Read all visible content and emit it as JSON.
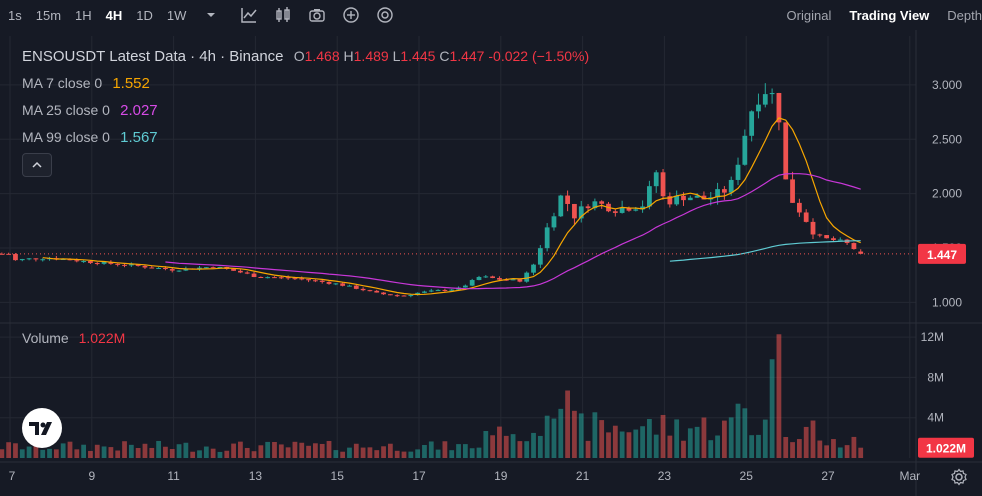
{
  "toolbar": {
    "timeframes": [
      {
        "label": "1s",
        "active": false
      },
      {
        "label": "15m",
        "active": false
      },
      {
        "label": "1H",
        "active": false
      },
      {
        "label": "4H",
        "active": true
      },
      {
        "label": "1D",
        "active": false
      },
      {
        "label": "1W",
        "active": false
      }
    ],
    "icons": [
      "chevron-down-icon",
      "indicators-icon",
      "chart-type-icon",
      "camera-icon",
      "plus-circle-icon",
      "replay-icon"
    ],
    "views": [
      {
        "label": "Original",
        "active": false
      },
      {
        "label": "Trading View",
        "active": true
      },
      {
        "label": "Depth",
        "active": false
      }
    ]
  },
  "legend": {
    "symbol": "ENSOUSDT Latest Data · 4h · Binance",
    "open_key": "O",
    "open": "1.468",
    "high_key": "H",
    "high": "1.489",
    "low_key": "L",
    "low": "1.445",
    "close_key": "C",
    "close": "1.447",
    "change": "-0.022 (−1.50%)",
    "ma7_label": "MA 7 close 0",
    "ma7_value": "1.552",
    "ma25_label": "MA 25 close 0",
    "ma25_value": "2.027",
    "ma99_label": "MA 99 close 0",
    "ma99_value": "1.567",
    "volume_label": "Volume",
    "volume_value": "1.022M"
  },
  "colors": {
    "up": "#26a69a",
    "down": "#ef5350",
    "ma7": "#f7a600",
    "ma25": "#c837d8",
    "ma99": "#5fcbd3",
    "background": "#161a25",
    "grid": "#242833"
  },
  "chart_data": {
    "type": "candlestick",
    "symbol": "ENSOUSDT",
    "interval": "4h",
    "exchange": "Binance",
    "x_ticks": [
      "7",
      "9",
      "11",
      "13",
      "15",
      "17",
      "19",
      "21",
      "23",
      "25",
      "27",
      "Mar"
    ],
    "price_ticks": [
      "3.000",
      "2.500",
      "2.000",
      "1.500",
      "1.000"
    ],
    "price_range": [
      0.82,
      3.45
    ],
    "last_price": "1.447",
    "volume_ticks": [
      "12M",
      "8M",
      "4M"
    ],
    "volume_range": [
      0,
      13.2
    ],
    "last_volume": "1.022M",
    "ma_series_names": [
      "MA 7",
      "MA 25",
      "MA 99"
    ],
    "grid": true
  }
}
